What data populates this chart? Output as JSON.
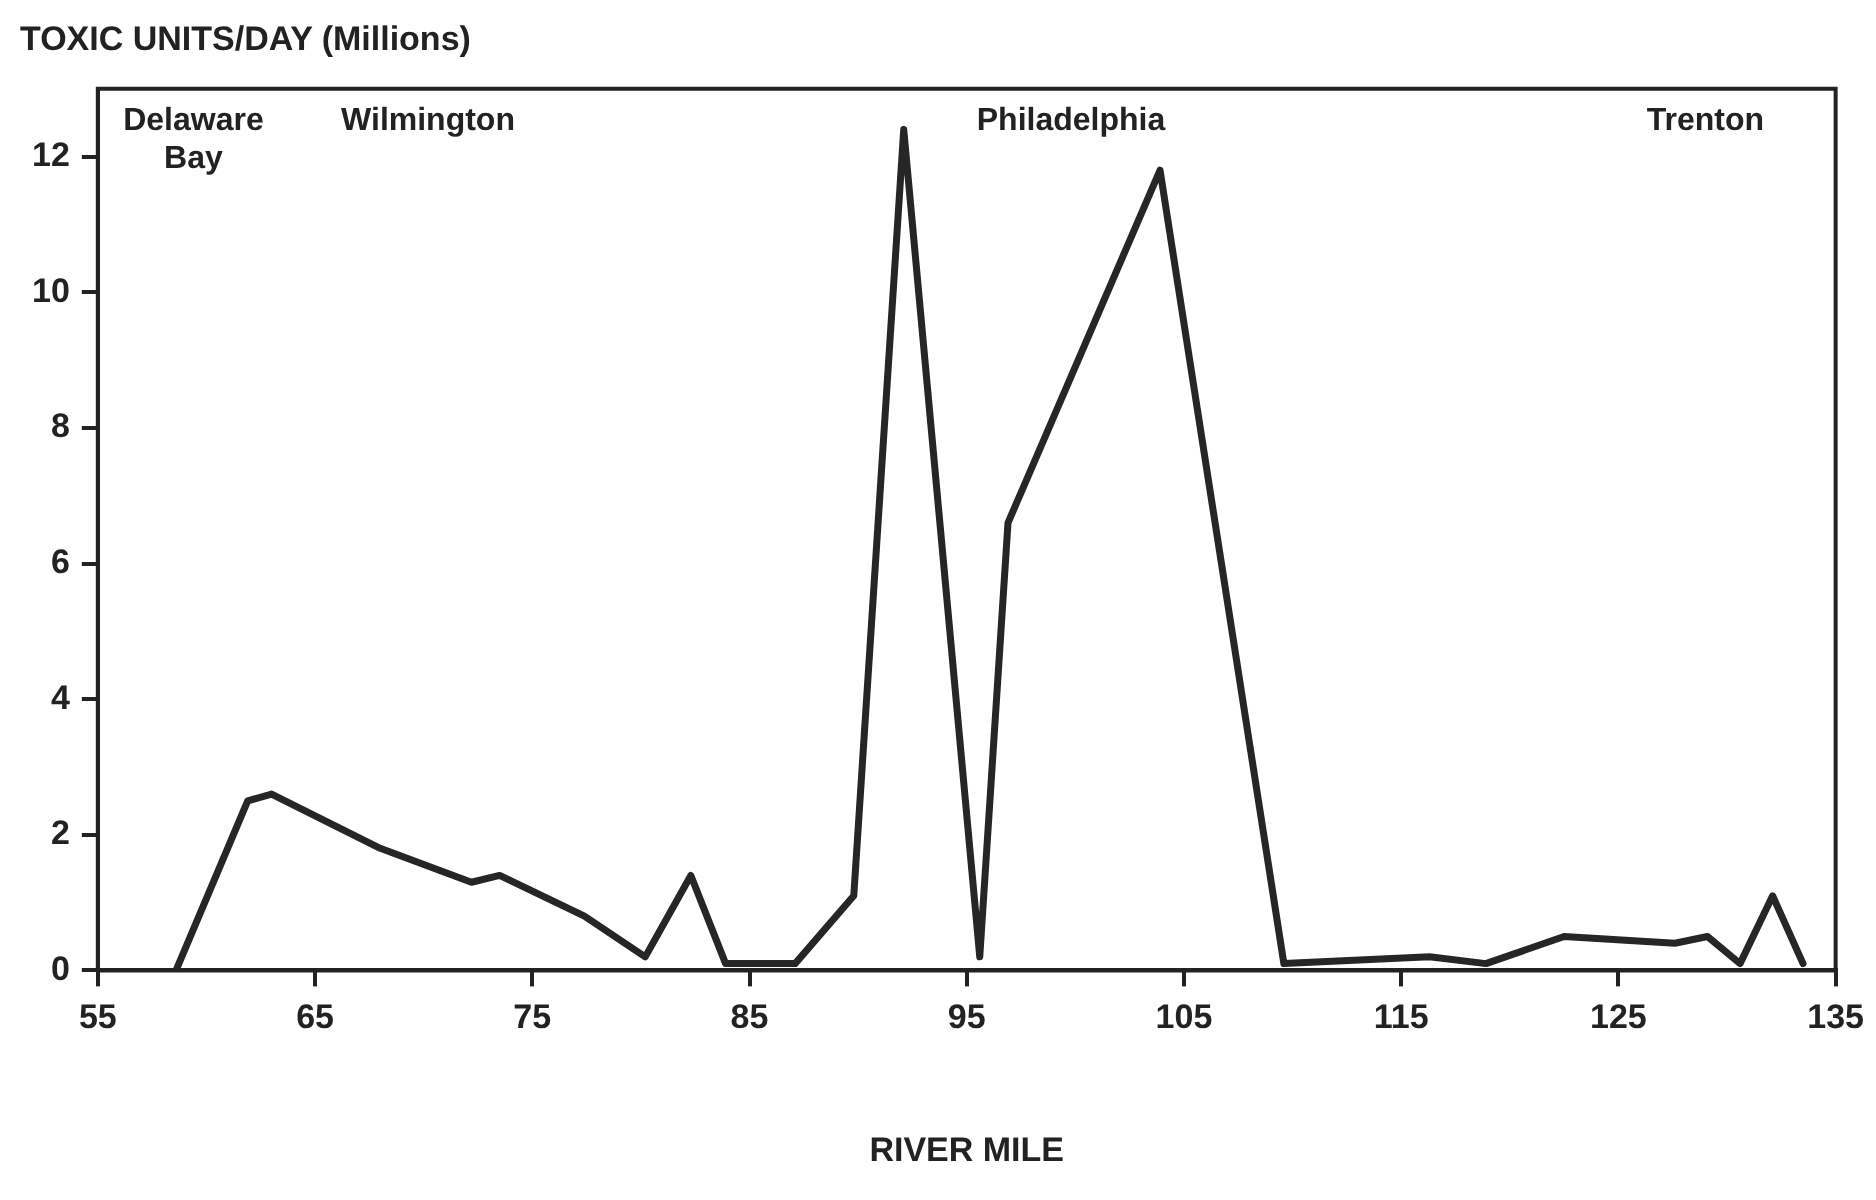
{
  "chart_data": {
    "type": "line",
    "ylabel": "TOXIC UNITS/DAY (Millions)",
    "xlabel": "RIVER MILE",
    "x": [
      58.6,
      61.9,
      63.0,
      68.0,
      72.2,
      73.5,
      77.4,
      80.2,
      82.3,
      83.9,
      87.1,
      89.8,
      92.1,
      95.6,
      96.9,
      103.9,
      109.6,
      116.3,
      118.9,
      122.5,
      127.6,
      129.1,
      130.6,
      132.1,
      133.5
    ],
    "series": [
      {
        "color": "#262626",
        "values": [
          0,
          2.5,
          2.6,
          1.8,
          1.3,
          1.4,
          0.8,
          0.2,
          1.4,
          0.1,
          0.1,
          1.1,
          12.4,
          0.2,
          6.6,
          11.8,
          0.1,
          0.2,
          0.1,
          0.5,
          0.4,
          0.5,
          0.1,
          1.1,
          0.1
        ]
      }
    ],
    "xlim": [
      55,
      135
    ],
    "xticks": [
      55,
      65,
      75,
      85,
      95,
      105,
      115,
      125,
      135
    ],
    "ylim": [
      0,
      13
    ],
    "yticks": [
      0,
      2,
      4,
      6,
      8,
      10,
      12
    ],
    "annotations": [
      "Delaware Bay",
      "Wilmington",
      "Philadelphia",
      "Trenton"
    ],
    "grid": false,
    "legend": false,
    "marker": "none",
    "line_style": "solid"
  }
}
